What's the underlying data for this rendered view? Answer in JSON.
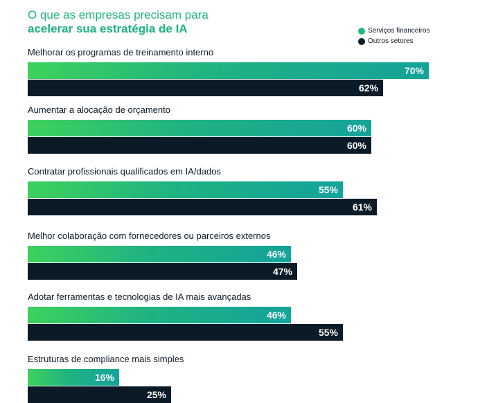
{
  "title": {
    "line1": "O que as empresas precisam para",
    "line2": "acelerar sua estratégia de IA"
  },
  "legend": [
    {
      "name": "Serviços financeiros",
      "color": "#22b87a"
    },
    {
      "name": "Outros setores",
      "color": "#0b1a27"
    }
  ],
  "chart_data": {
    "type": "bar",
    "orientation": "horizontal",
    "title": "O que as empresas precisam para acelerar sua estratégia de IA",
    "categories": [
      "Melhorar os programas de treinamento interno",
      "Aumentar a alocação de orçamento",
      "Contratar profissionais qualificados em IA/dados",
      "Melhor colaboração com fornecedores ou parceiros externos",
      "Adotar ferramentas e tecnologias de IA mais avançadas",
      "Estruturas de compliance mais simples"
    ],
    "series": [
      {
        "name": "Serviços financeiros",
        "values": [
          70,
          60,
          55,
          46,
          46,
          16
        ],
        "labels": [
          "70%",
          "60%",
          "55%",
          "46%",
          "46%",
          "16%"
        ]
      },
      {
        "name": "Outros setores",
        "values": [
          62,
          60,
          61,
          47,
          55,
          25
        ],
        "labels": [
          "62%",
          "60%",
          "61%",
          "47%",
          "55%",
          "25%"
        ]
      }
    ],
    "xlim": [
      0,
      100
    ],
    "unit": "%",
    "legend_position": "top-right",
    "grid": false
  }
}
